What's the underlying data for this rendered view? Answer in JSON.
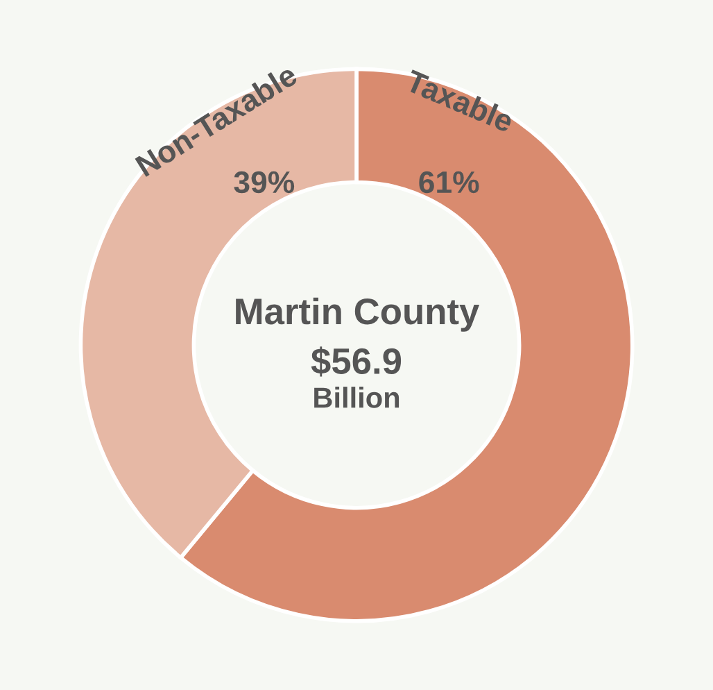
{
  "chart_data": {
    "type": "donut",
    "title": "Martin County",
    "categories": [
      "Taxable",
      "Non-Taxable"
    ],
    "values": [
      61,
      39
    ],
    "colors": [
      "#d98b6f",
      "#e6b8a5"
    ],
    "value_labels": [
      "61%",
      "39%"
    ],
    "annotations": [
      "$56.9",
      "Billion"
    ],
    "legend": false
  }
}
